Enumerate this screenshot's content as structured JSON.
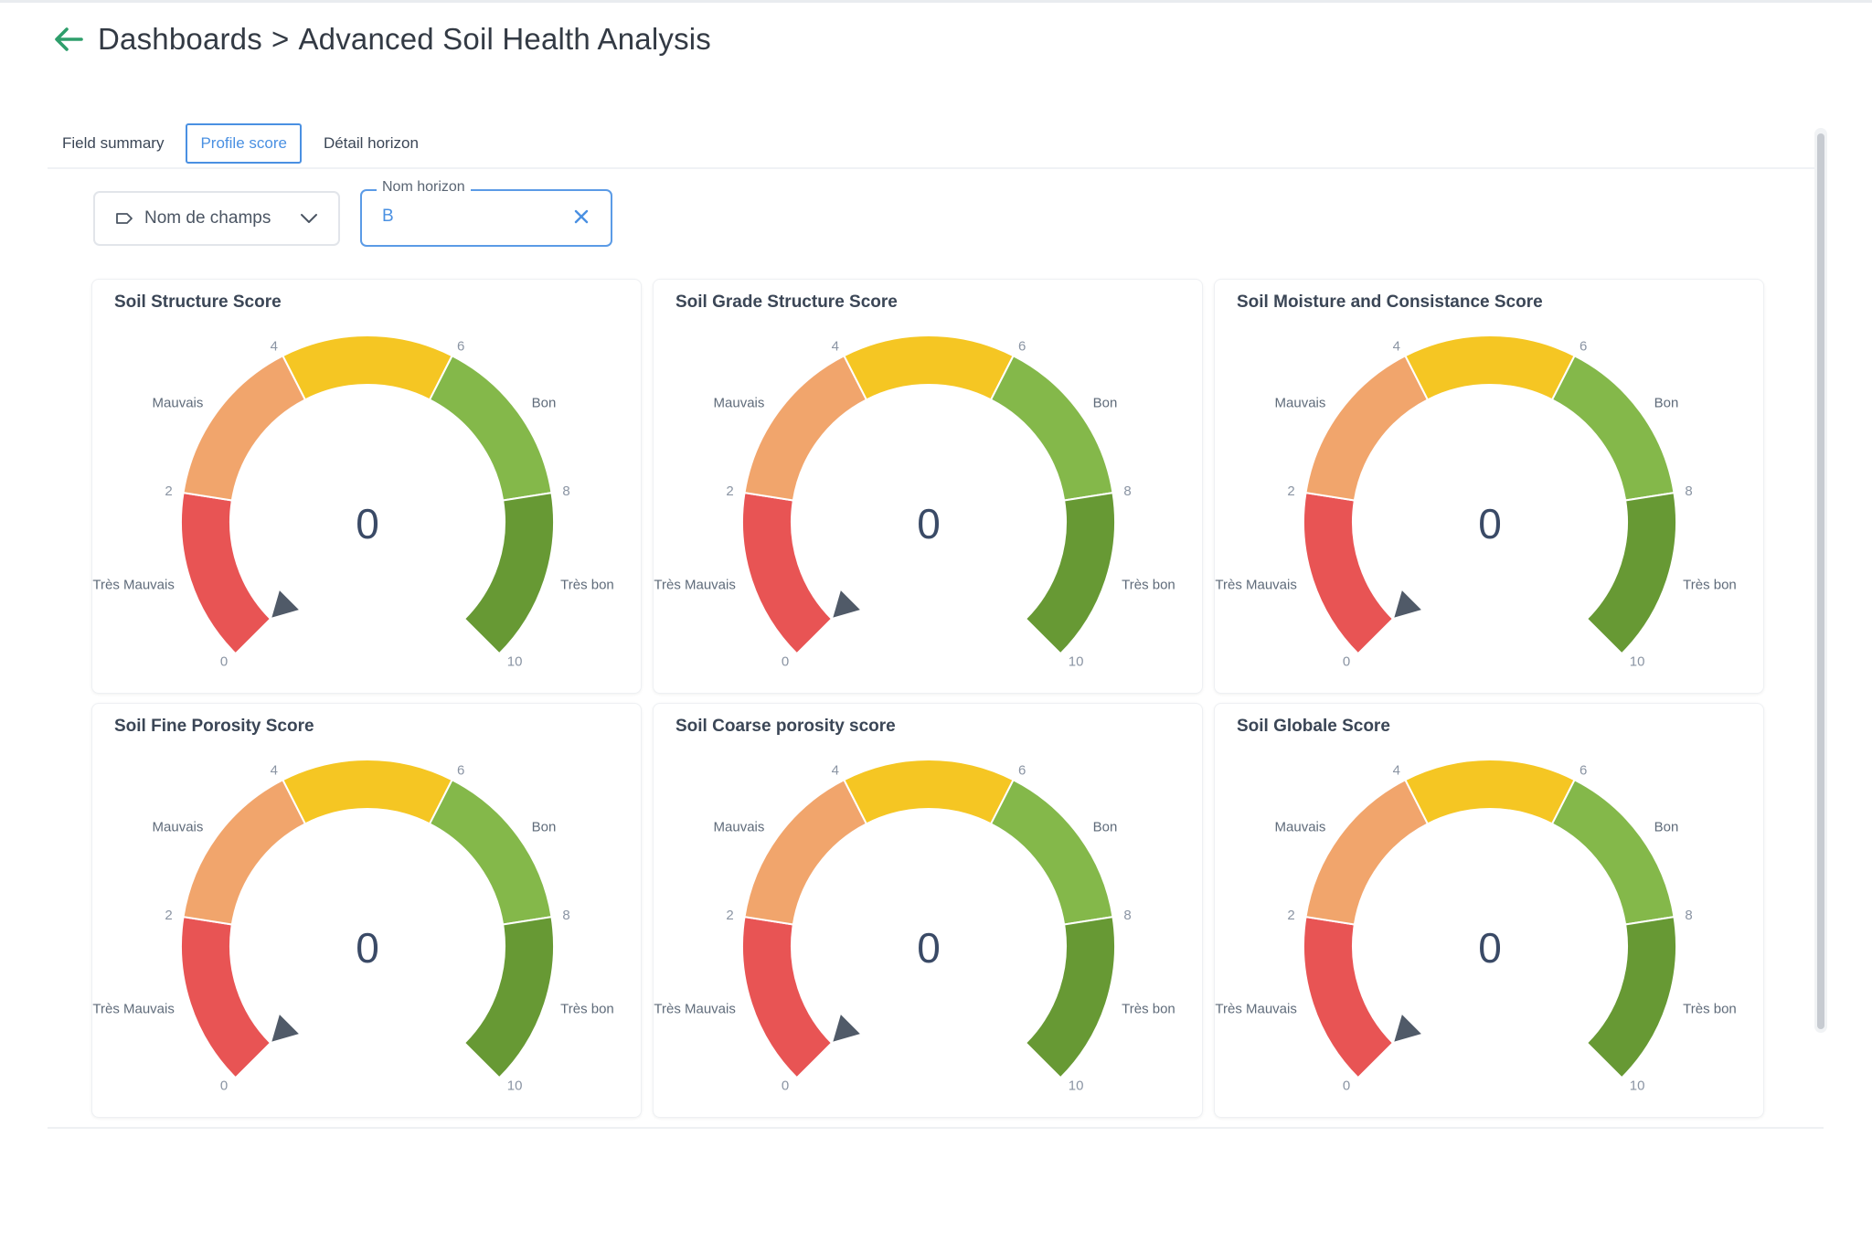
{
  "header": {
    "breadcrumb_root": "Dashboards",
    "separator": ">",
    "page_title": "Advanced Soil Health Analysis"
  },
  "tabs": [
    {
      "label": "Field summary",
      "active": false
    },
    {
      "label": "Profile score",
      "active": true
    },
    {
      "label": "Détail  horizon",
      "active": false
    }
  ],
  "filters": {
    "field_select": {
      "label": "Nom de champs"
    },
    "horizon": {
      "legend": "Nom horizon",
      "value": "B"
    }
  },
  "colors": {
    "tres_mauvais": "#e85454",
    "mauvais": "#f1a56c",
    "moyen": "#f5c623",
    "bon": "#84b84a",
    "tres_bon": "#679934",
    "accent": "#4a90e2",
    "header_icon": "#2e9e6b"
  },
  "gauge_scale": {
    "min": 0,
    "max": 10,
    "ticks": [
      "0",
      "2",
      "4",
      "6",
      "8",
      "10"
    ],
    "bands": [
      {
        "label": "Très Mauvais",
        "from": 0,
        "to": 2,
        "color_key": "tres_mauvais"
      },
      {
        "label": "Mauvais",
        "from": 2,
        "to": 4,
        "color_key": "mauvais"
      },
      {
        "label": "",
        "from": 4,
        "to": 6,
        "color_key": "moyen"
      },
      {
        "label": "Bon",
        "from": 6,
        "to": 8,
        "color_key": "bon"
      },
      {
        "label": "Très bon",
        "from": 8,
        "to": 10,
        "color_key": "tres_bon"
      }
    ]
  },
  "chart_data": [
    {
      "type": "gauge",
      "title": "Soil Structure Score",
      "value": 0,
      "range": [
        0,
        10
      ]
    },
    {
      "type": "gauge",
      "title": "Soil Grade Structure Score",
      "value": 0,
      "range": [
        0,
        10
      ]
    },
    {
      "type": "gauge",
      "title": "Soil Moisture and Consistance Score",
      "value": 0,
      "range": [
        0,
        10
      ]
    },
    {
      "type": "gauge",
      "title": "Soil Fine Porosity Score",
      "value": 0,
      "range": [
        0,
        10
      ]
    },
    {
      "type": "gauge",
      "title": "Soil Coarse porosity score",
      "value": 0,
      "range": [
        0,
        10
      ]
    },
    {
      "type": "gauge",
      "title": "Soil Globale Score",
      "value": 0,
      "range": [
        0,
        10
      ]
    }
  ]
}
